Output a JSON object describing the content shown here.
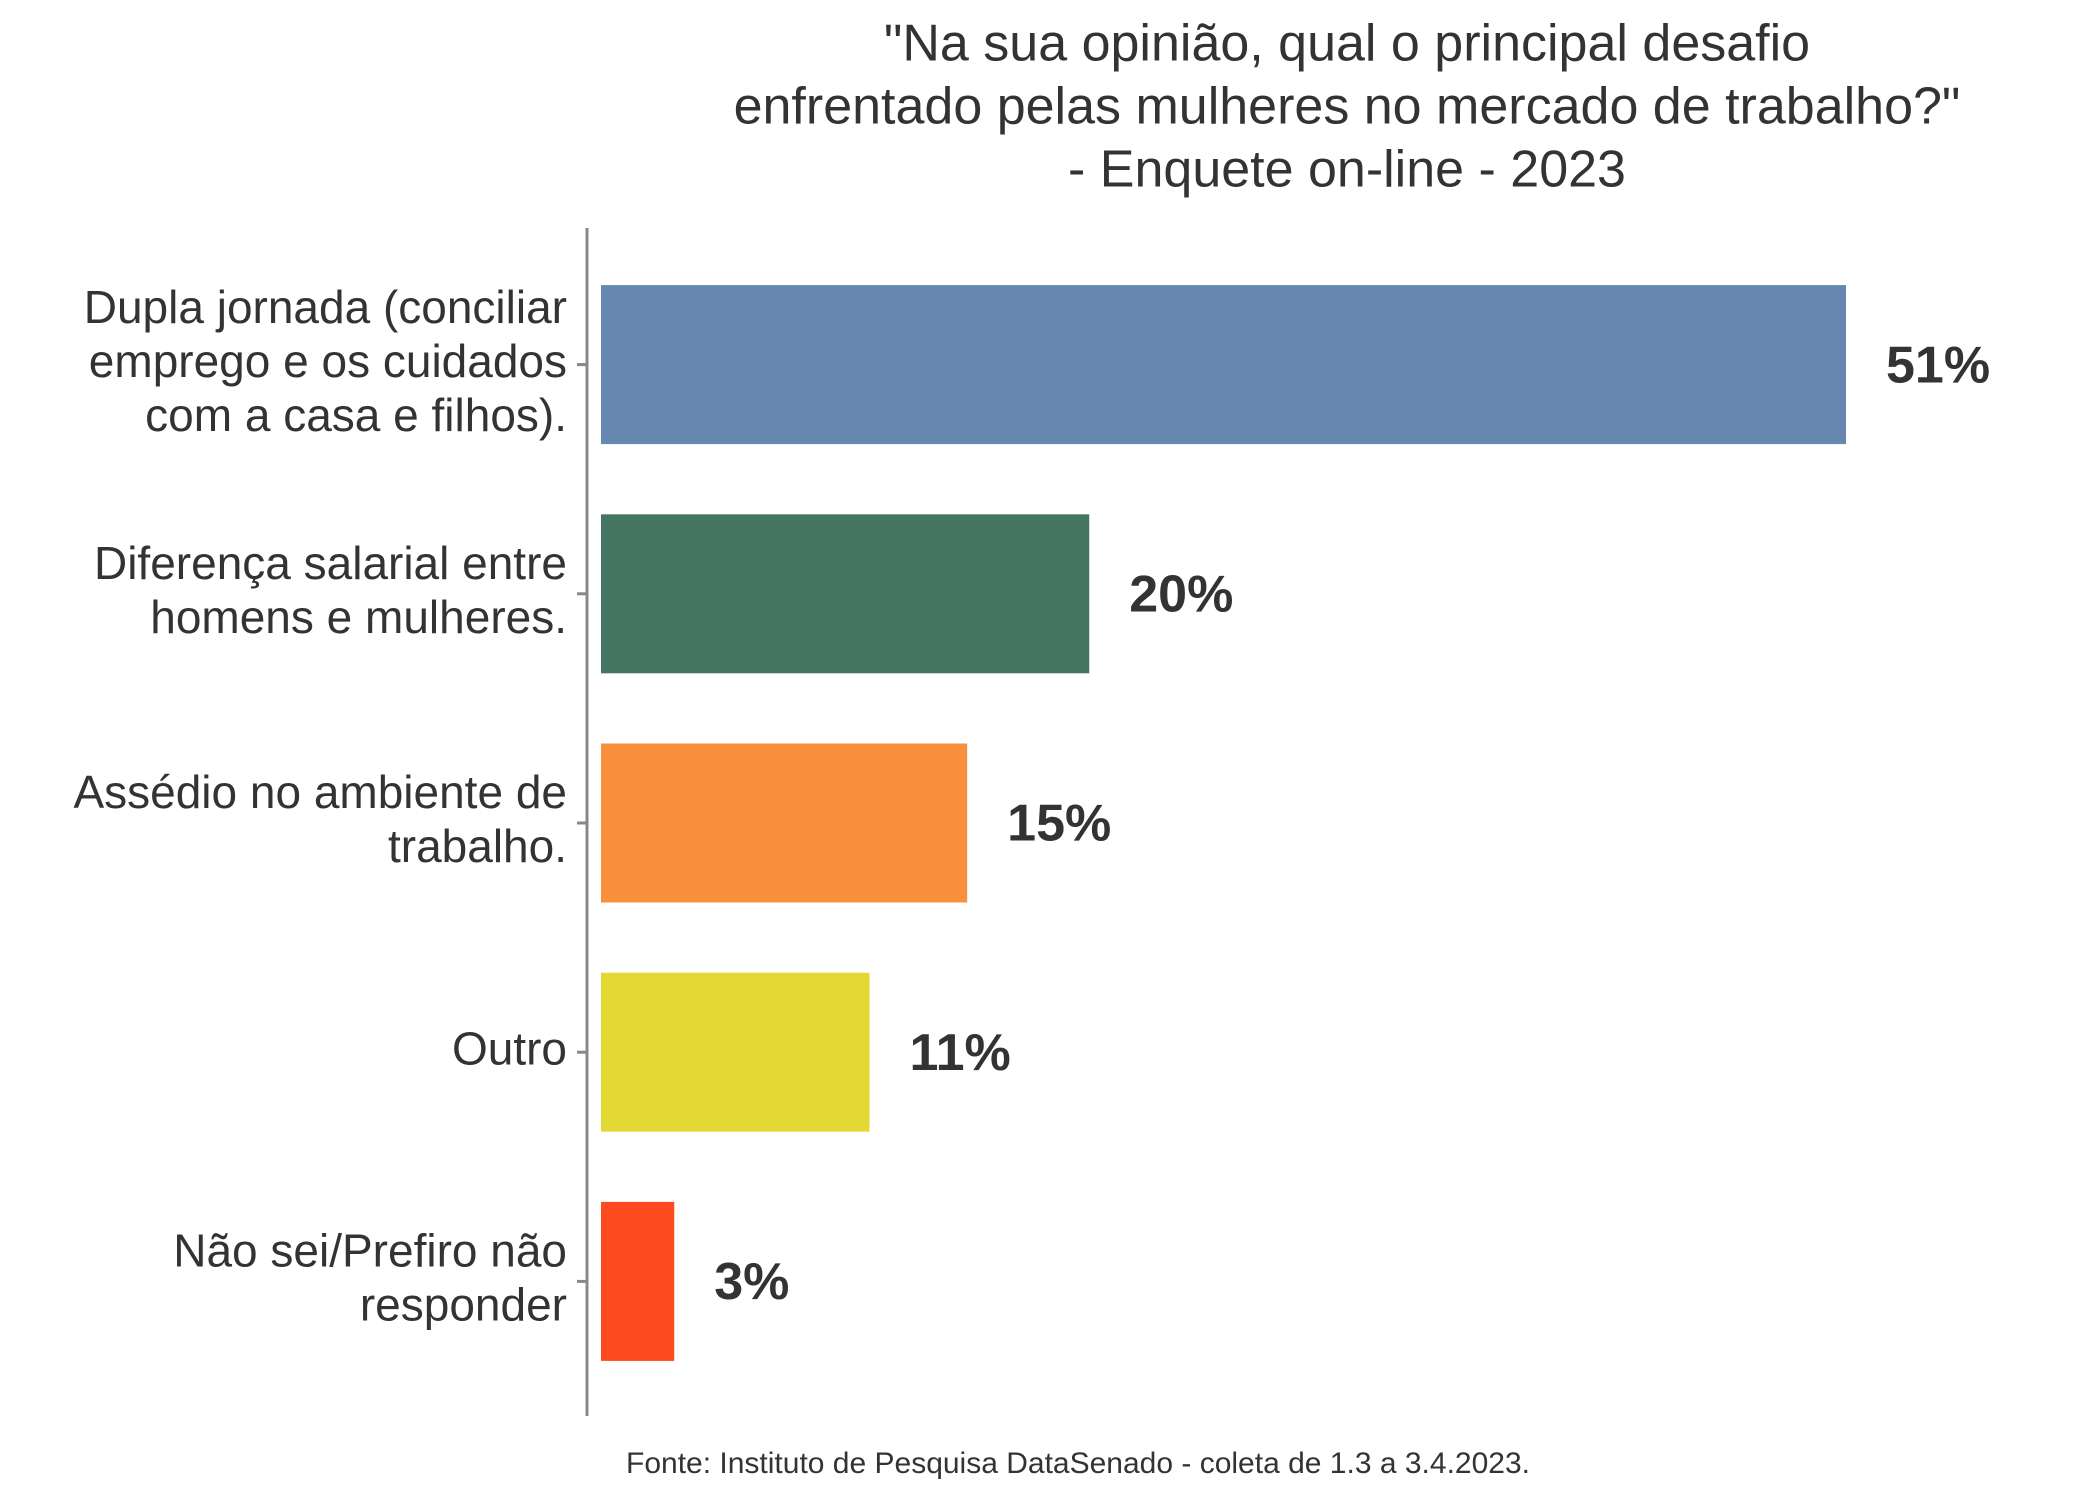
{
  "chart_data": {
    "type": "bar",
    "orientation": "horizontal",
    "title": [
      "\"Na sua opinião, qual o principal desafio",
      "enfrentado pelas mulheres no mercado de trabalho?\"",
      "- Enquete on-line - 2023"
    ],
    "categories": [
      [
        "Dupla jornada (conciliar",
        "emprego e os cuidados",
        "com a casa e filhos)."
      ],
      [
        "Diferença salarial entre",
        "homens e mulheres."
      ],
      [
        "Assédio no ambiente de",
        "trabalho."
      ],
      [
        "Outro"
      ],
      [
        "Não sei/Prefiro não",
        "responder"
      ]
    ],
    "values": [
      51,
      20,
      15,
      11,
      3
    ],
    "value_labels": [
      "51%",
      "20%",
      "15%",
      "11%",
      "3%"
    ],
    "colors": [
      "#6688b0",
      "#467563",
      "#f9913c",
      "#e3d834",
      "#fe4a1f"
    ],
    "source": "Fonte: Instituto de Pesquisa DataSenado - coleta de 1.3 a 3.4.2023."
  }
}
